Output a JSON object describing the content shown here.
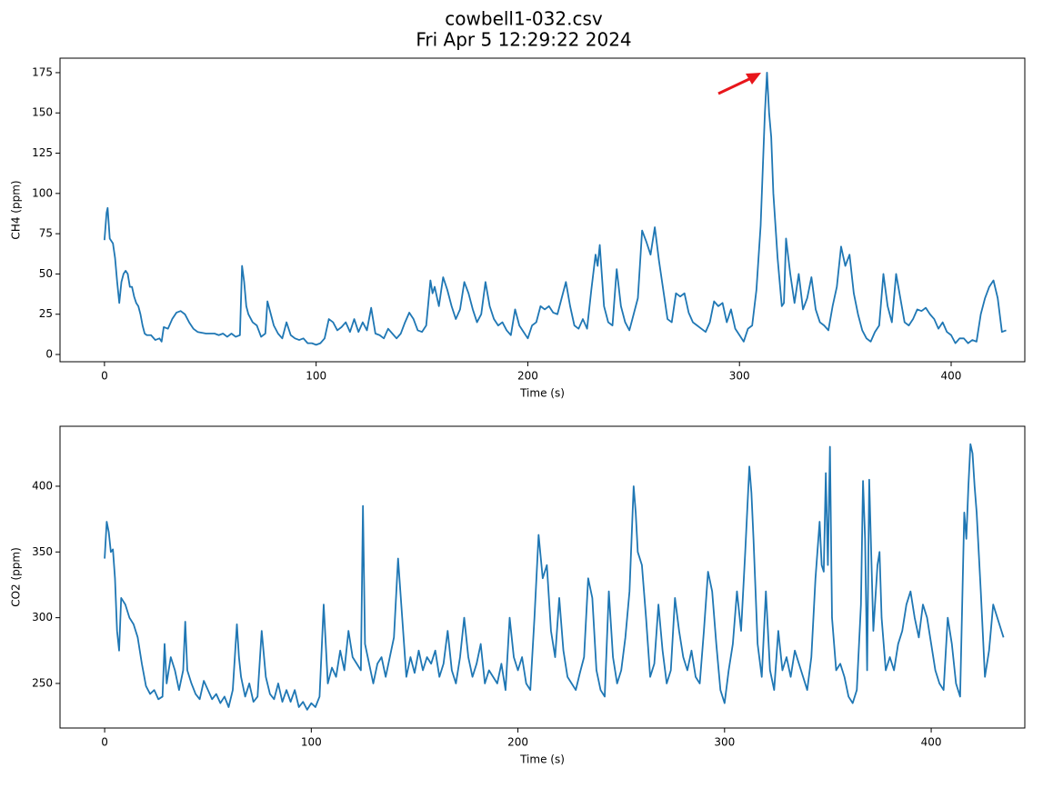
{
  "title": "cowbell1-032.csv",
  "subtitle": "Fri Apr  5 12:29:22 2024",
  "chart_data": [
    {
      "type": "line",
      "xlabel": "Time (s)",
      "ylabel": "CH4 (ppm)",
      "color": "#1f77b4",
      "xlim": [
        -21,
        434.8
      ],
      "ylim": [
        -4.5,
        184
      ],
      "xticks": [
        0,
        100,
        200,
        300,
        400
      ],
      "yticks": [
        0,
        25,
        50,
        75,
        100,
        125,
        150,
        175
      ],
      "x": [
        0,
        1,
        1.5,
        2.5,
        4,
        5,
        6,
        7,
        8,
        9,
        10,
        11,
        12,
        13,
        14,
        15,
        16,
        17,
        18,
        19,
        20,
        22,
        24,
        26,
        27,
        28,
        30,
        32,
        34,
        36,
        38,
        40,
        42,
        44,
        48,
        52,
        54,
        56,
        58,
        60,
        62,
        64,
        65,
        66,
        67,
        68,
        70,
        72,
        74,
        76,
        77,
        78,
        80,
        82,
        84,
        86,
        88,
        90,
        92,
        94,
        96,
        98,
        100,
        102,
        104,
        106,
        108,
        110,
        112,
        114,
        116,
        118,
        120,
        122,
        124,
        126,
        128,
        130,
        132,
        134,
        136,
        138,
        140,
        142,
        144,
        146,
        148,
        150,
        152,
        154,
        155,
        156,
        158,
        160,
        162,
        164,
        166,
        168,
        170,
        172,
        174,
        176,
        178,
        180,
        182,
        184,
        186,
        188,
        190,
        192,
        194,
        196,
        198,
        200,
        202,
        204,
        206,
        208,
        210,
        212,
        214,
        216,
        218,
        220,
        222,
        224,
        226,
        228,
        230,
        232,
        233,
        234,
        236,
        238,
        240,
        242,
        244,
        246,
        248,
        250,
        252,
        254,
        256,
        258,
        260,
        262,
        264,
        266,
        268,
        270,
        272,
        274,
        276,
        278,
        280,
        282,
        284,
        286,
        288,
        290,
        292,
        294,
        296,
        298,
        300,
        302,
        304,
        306,
        308,
        310,
        312,
        313,
        314,
        315,
        316,
        318,
        320,
        321,
        322,
        324,
        326,
        328,
        330,
        332,
        334,
        336,
        338,
        340,
        342,
        344,
        346,
        348,
        350,
        352,
        354,
        356,
        358,
        360,
        362,
        364,
        366,
        368,
        370,
        372,
        374,
        376,
        378,
        380,
        382,
        384,
        386,
        388,
        390,
        392,
        394,
        396,
        398,
        400,
        402,
        404,
        406,
        408,
        410,
        412,
        414,
        416,
        418,
        420,
        422,
        424,
        426
      ],
      "values": [
        71,
        88,
        91,
        72,
        69,
        60,
        45,
        32,
        45,
        50,
        52,
        50,
        42,
        42,
        36,
        32,
        30,
        25,
        18,
        13,
        12,
        12,
        9,
        10,
        8,
        17,
        16,
        22,
        26,
        27,
        25,
        20,
        16,
        14,
        13,
        13,
        12,
        13,
        11,
        13,
        11,
        12,
        55,
        45,
        30,
        25,
        20,
        18,
        11,
        13,
        33,
        28,
        18,
        13,
        10,
        20,
        12,
        10,
        9,
        10,
        7,
        7,
        6,
        7,
        10,
        22,
        20,
        15,
        17,
        20,
        14,
        22,
        14,
        20,
        15,
        29,
        13,
        12,
        10,
        16,
        13,
        10,
        13,
        20,
        26,
        22,
        15,
        14,
        18,
        46,
        38,
        42,
        30,
        48,
        40,
        30,
        22,
        28,
        45,
        38,
        28,
        20,
        25,
        45,
        30,
        22,
        18,
        20,
        15,
        12,
        28,
        18,
        14,
        10,
        18,
        20,
        30,
        28,
        30,
        26,
        25,
        35,
        45,
        30,
        18,
        16,
        22,
        16,
        40,
        62,
        55,
        68,
        30,
        20,
        18,
        53,
        30,
        20,
        15,
        25,
        35,
        77,
        70,
        62,
        79,
        58,
        40,
        22,
        20,
        38,
        36,
        38,
        26,
        20,
        18,
        16,
        14,
        20,
        33,
        30,
        32,
        20,
        28,
        16,
        12,
        8,
        16,
        18,
        40,
        80,
        150,
        175,
        150,
        135,
        100,
        60,
        30,
        32,
        72,
        50,
        32,
        50,
        28,
        35,
        48,
        28,
        20,
        18,
        15,
        30,
        42,
        67,
        55,
        62,
        38,
        25,
        15,
        10,
        8,
        14,
        18,
        50,
        30,
        20,
        50,
        35,
        20,
        18,
        22,
        28,
        27,
        29,
        25,
        22,
        16,
        20,
        14,
        12,
        7,
        10,
        10,
        7,
        9,
        8,
        25,
        35,
        42,
        46,
        35,
        14,
        15
      ]
    },
    {
      "type": "line",
      "xlabel": "Time (s)",
      "ylabel": "CO2 (ppm)",
      "color": "#1f77b4",
      "xlim": [
        -21.6,
        445.3
      ],
      "ylim": [
        216.1,
        445.6
      ],
      "xticks": [
        0,
        100,
        200,
        300,
        400
      ],
      "yticks": [
        250,
        300,
        350,
        400
      ],
      "x": [
        0,
        1,
        2,
        3,
        4,
        5,
        6,
        7,
        8,
        10,
        12,
        14,
        16,
        18,
        20,
        22,
        24,
        26,
        28,
        29,
        30,
        32,
        34,
        36,
        38,
        39,
        40,
        42,
        44,
        46,
        48,
        50,
        52,
        54,
        56,
        58,
        60,
        62,
        64,
        65,
        66,
        68,
        70,
        72,
        74,
        76,
        78,
        80,
        82,
        84,
        86,
        88,
        90,
        92,
        94,
        96,
        98,
        100,
        102,
        104,
        106,
        107,
        108,
        110,
        112,
        114,
        116,
        118,
        120,
        122,
        124,
        125,
        126,
        128,
        130,
        132,
        134,
        136,
        138,
        140,
        142,
        144,
        146,
        148,
        150,
        152,
        154,
        156,
        158,
        160,
        162,
        164,
        166,
        168,
        170,
        172,
        174,
        176,
        178,
        180,
        182,
        184,
        186,
        188,
        190,
        192,
        194,
        196,
        198,
        200,
        202,
        204,
        206,
        208,
        210,
        212,
        214,
        216,
        218,
        220,
        222,
        224,
        226,
        228,
        230,
        232,
        234,
        236,
        238,
        240,
        242,
        244,
        246,
        248,
        250,
        252,
        254,
        256,
        257,
        258,
        260,
        262,
        264,
        266,
        268,
        270,
        272,
        274,
        276,
        278,
        280,
        282,
        284,
        286,
        288,
        290,
        292,
        294,
        296,
        298,
        300,
        302,
        304,
        306,
        308,
        310,
        312,
        313,
        314,
        316,
        318,
        320,
        322,
        324,
        326,
        328,
        330,
        332,
        334,
        336,
        338,
        340,
        342,
        344,
        346,
        347,
        348,
        349,
        350,
        351,
        352,
        354,
        356,
        358,
        360,
        362,
        364,
        366,
        367,
        368,
        369,
        370,
        372,
        374,
        375,
        376,
        378,
        380,
        382,
        384,
        386,
        388,
        390,
        392,
        394,
        396,
        398,
        400,
        402,
        404,
        406,
        408,
        410,
        412,
        414,
        416,
        417,
        418,
        419,
        420,
        421,
        422,
        424,
        426,
        428,
        430,
        432,
        434,
        435
      ],
      "values": [
        345,
        373,
        365,
        350,
        352,
        330,
        290,
        275,
        315,
        310,
        300,
        295,
        285,
        265,
        248,
        242,
        245,
        238,
        240,
        280,
        250,
        270,
        260,
        245,
        260,
        297,
        260,
        250,
        242,
        238,
        252,
        245,
        238,
        242,
        235,
        240,
        232,
        245,
        295,
        270,
        255,
        240,
        250,
        236,
        240,
        290,
        255,
        242,
        238,
        250,
        236,
        245,
        236,
        245,
        232,
        236,
        230,
        235,
        232,
        240,
        310,
        280,
        250,
        262,
        255,
        275,
        260,
        290,
        270,
        265,
        260,
        385,
        280,
        265,
        250,
        265,
        270,
        255,
        270,
        285,
        345,
        300,
        255,
        270,
        258,
        275,
        260,
        270,
        265,
        275,
        255,
        265,
        290,
        260,
        250,
        270,
        300,
        270,
        255,
        265,
        280,
        250,
        260,
        255,
        250,
        265,
        245,
        300,
        270,
        260,
        270,
        250,
        245,
        300,
        363,
        330,
        340,
        290,
        270,
        315,
        275,
        255,
        250,
        245,
        258,
        270,
        330,
        315,
        260,
        245,
        240,
        320,
        270,
        250,
        260,
        285,
        320,
        400,
        380,
        350,
        340,
        300,
        255,
        265,
        310,
        275,
        250,
        260,
        315,
        290,
        270,
        260,
        275,
        255,
        250,
        290,
        335,
        320,
        280,
        245,
        235,
        260,
        280,
        320,
        290,
        350,
        415,
        395,
        360,
        280,
        255,
        320,
        260,
        245,
        290,
        260,
        270,
        255,
        275,
        265,
        255,
        245,
        270,
        330,
        373,
        340,
        335,
        410,
        340,
        430,
        300,
        260,
        265,
        255,
        240,
        235,
        245,
        310,
        404,
        360,
        260,
        405,
        290,
        340,
        350,
        300,
        260,
        270,
        260,
        280,
        290,
        310,
        320,
        300,
        285,
        310,
        300,
        280,
        260,
        250,
        245,
        300,
        280,
        250,
        240,
        380,
        360,
        400,
        432,
        425,
        400,
        380,
        320,
        255,
        275,
        310,
        300,
        290,
        285
      ]
    }
  ]
}
